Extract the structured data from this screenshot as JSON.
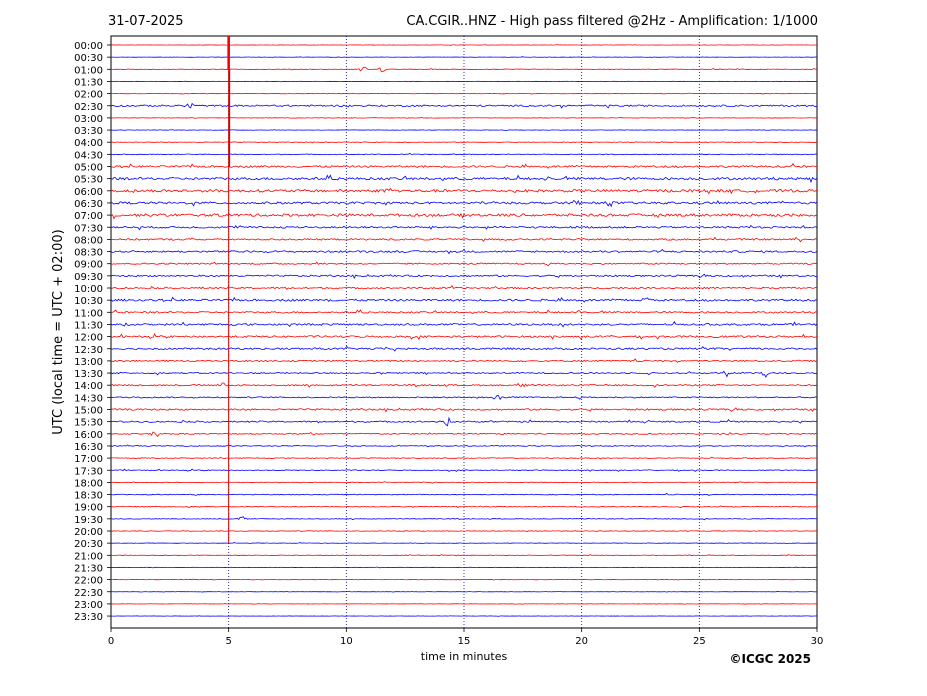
{
  "chart_data": {
    "type": "line",
    "date": "31-07-2025",
    "title": "CA.CGIR..HNZ - High pass filtered @2Hz - Amplification: 1/1000",
    "xlabel": "time in minutes",
    "ylabel": "UTC (local time = UTC + 02:00)",
    "xlim": [
      0,
      30
    ],
    "x_ticks": [
      "0",
      "5",
      "10",
      "15",
      "20",
      "25",
      "30"
    ],
    "vertical_gridlines_minutes": [
      5,
      10,
      15,
      20,
      25
    ],
    "row_labels": [
      "00:00",
      "00:30",
      "01:00",
      "01:30",
      "02:00",
      "02:30",
      "03:00",
      "03:30",
      "04:00",
      "04:30",
      "05:00",
      "05:30",
      "06:00",
      "06:30",
      "07:00",
      "07:30",
      "08:00",
      "08:30",
      "09:00",
      "09:30",
      "10:00",
      "10:30",
      "11:00",
      "11:30",
      "12:00",
      "12:30",
      "13:00",
      "13:30",
      "14:00",
      "14:30",
      "15:00",
      "15:30",
      "16:00",
      "16:30",
      "17:00",
      "17:30",
      "18:00",
      "18:30",
      "19:00",
      "19:30",
      "20:00",
      "20:30",
      "21:00",
      "21:30",
      "22:00",
      "22:30",
      "23:00",
      "23:30"
    ],
    "trace_colors": [
      "#ff0000",
      "#0000ff"
    ],
    "trace_noise_levels": [
      0.15,
      0.15,
      0.25,
      0.15,
      0.2,
      0.8,
      0.2,
      0.2,
      0.25,
      0.35,
      0.9,
      1.2,
      1.3,
      1.1,
      1.3,
      0.9,
      0.8,
      0.9,
      0.7,
      0.8,
      0.8,
      1.0,
      0.8,
      0.9,
      0.9,
      0.9,
      0.7,
      0.6,
      0.7,
      0.6,
      0.8,
      0.7,
      0.6,
      0.4,
      0.35,
      0.4,
      0.3,
      0.4,
      0.35,
      0.3,
      0.3,
      0.2,
      0.25,
      0.2,
      0.2,
      0.15,
      0.12,
      0.12
    ],
    "events": [
      {
        "row": 2,
        "minute": 10.7,
        "amp": 4
      },
      {
        "row": 2,
        "minute": 11.5,
        "amp": 3
      },
      {
        "row": 5,
        "minute": 3.4,
        "amp": 4
      },
      {
        "row": 12,
        "minute": 11.8,
        "amp": 4
      },
      {
        "row": 11,
        "minute": 18.5,
        "amp": 3
      },
      {
        "row": 13,
        "minute": 19.8,
        "amp": 3
      },
      {
        "row": 13,
        "minute": 21.2,
        "amp": 3
      },
      {
        "row": 14,
        "minute": 29.2,
        "amp": 3
      },
      {
        "row": 15,
        "minute": 7.9,
        "amp": 3
      },
      {
        "row": 21,
        "minute": 22.7,
        "amp": 4
      },
      {
        "row": 21,
        "minute": 9.1,
        "amp": 3
      },
      {
        "row": 23,
        "minute": 0.7,
        "amp": 3
      },
      {
        "row": 27,
        "minute": 26.2,
        "amp": 5
      },
      {
        "row": 27,
        "minute": 27.8,
        "amp": 4
      },
      {
        "row": 28,
        "minute": 4.8,
        "amp": 3
      },
      {
        "row": 28,
        "minute": 17.6,
        "amp": 3
      },
      {
        "row": 29,
        "minute": 16.4,
        "amp": 4
      },
      {
        "row": 31,
        "minute": 14.3,
        "amp": 6
      },
      {
        "row": 32,
        "minute": 1.9,
        "amp": 4
      },
      {
        "row": 37,
        "minute": 3.5,
        "amp": 3
      },
      {
        "row": 39,
        "minute": 5.6,
        "amp": 3
      }
    ],
    "spike": {
      "minute": 5.0,
      "from_row": 0,
      "to_row": 41
    }
  },
  "footer": {
    "copyright": "©ICGC 2025"
  }
}
